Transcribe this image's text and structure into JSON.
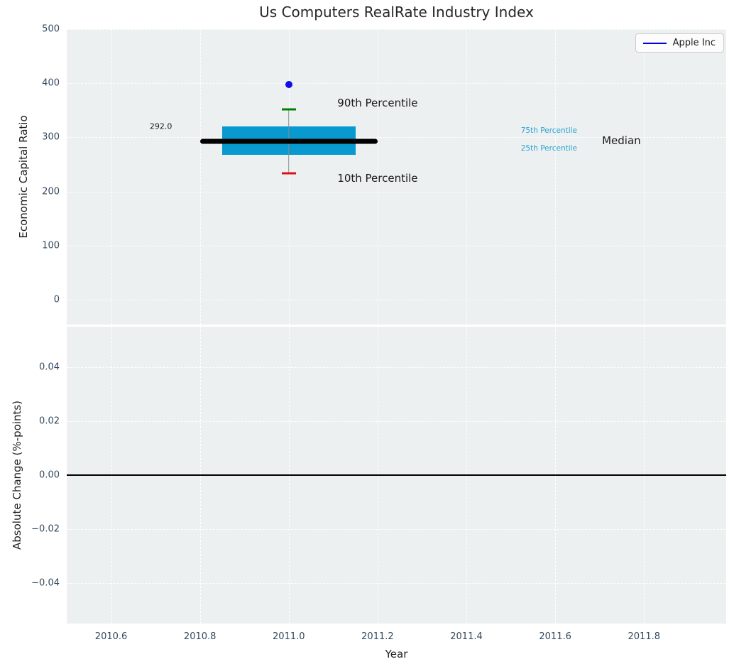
{
  "title": "Us Computers RealRate Industry Index",
  "colors": {
    "figure_bg": "#ffffff",
    "axes_bg": "#ecf0f1",
    "grid": "#ffffff",
    "tick_label": "#34495e",
    "axis_label": "#1f1f1f",
    "title": "#262626",
    "box_fill": "#0899ce",
    "percentile_text": "#29a3d1",
    "annotation_text": "#1a1a1a",
    "median_line": "#000000",
    "whisker": "#7f8c8d",
    "cap_90th": "#008000",
    "cap_10th": "#e01010",
    "apple_dot": "#0d0de8",
    "legend_line": "#0000dd",
    "zero_line": "#000000"
  },
  "x_axis": {
    "label": "Year",
    "xlim": [
      2010.5,
      2011.985
    ],
    "tick_values": [
      2010.6,
      2010.8,
      2011.0,
      2011.2,
      2011.4,
      2011.6,
      2011.8
    ],
    "tick_labels": [
      "2010.6",
      "2010.8",
      "2011.0",
      "2011.2",
      "2011.4",
      "2011.6",
      "2011.8"
    ]
  },
  "chart_data": [
    {
      "type": "box",
      "title": "Us Computers RealRate Industry Index",
      "ylabel": "Economic Capital Ratio",
      "ylim": [
        -46,
        500
      ],
      "ytick_values": [
        0,
        100,
        200,
        300,
        400,
        500
      ],
      "ytick_labels": [
        "0",
        "100",
        "200",
        "300",
        "400",
        "500"
      ],
      "grid": "white-dashed",
      "box": {
        "x_center": 2011.0,
        "box_x_left": 2010.85,
        "box_x_right": 2011.15,
        "median": 292.0,
        "median_x_left": 2010.8,
        "median_x_right": 2011.2,
        "q1_25th": 268,
        "q3_75th": 320,
        "p10": 234,
        "p90": 352
      },
      "apple_point": {
        "name": "Apple Inc",
        "x": 2011.0,
        "y": 398
      },
      "annotations": [
        {
          "text": "292.0",
          "x": 2010.712,
          "y": 320,
          "color": "#1a1a1a",
          "size": 11
        },
        {
          "text": "90th Percentile",
          "x": 2011.2,
          "y": 363,
          "color": "#1a1a1a",
          "size": 15
        },
        {
          "text": "10th Percentile",
          "x": 2011.2,
          "y": 225,
          "color": "#1a1a1a",
          "size": 15
        },
        {
          "text": "75th Percentile",
          "x": 2011.586,
          "y": 312,
          "color": "#29a3d1",
          "size": 10.5
        },
        {
          "text": "25th Percentile",
          "x": 2011.586,
          "y": 279,
          "color": "#29a3d1",
          "size": 10.5
        },
        {
          "text": "Median",
          "x": 2011.749,
          "y": 294,
          "color": "#1a1a1a",
          "size": 15
        }
      ],
      "legend": {
        "label": "Apple Inc",
        "position": "upper right"
      }
    },
    {
      "type": "line",
      "ylabel": "Absolute Change (%-points)",
      "xlabel": "Year",
      "ylim": [
        -0.055,
        0.055
      ],
      "ytick_values": [
        0.04,
        0.02,
        0.0,
        -0.02,
        -0.04
      ],
      "ytick_labels": [
        "0.04",
        "0.02",
        "0.00",
        "−0.02",
        "−0.04"
      ],
      "zero_line_y": 0.0,
      "series": []
    }
  ]
}
